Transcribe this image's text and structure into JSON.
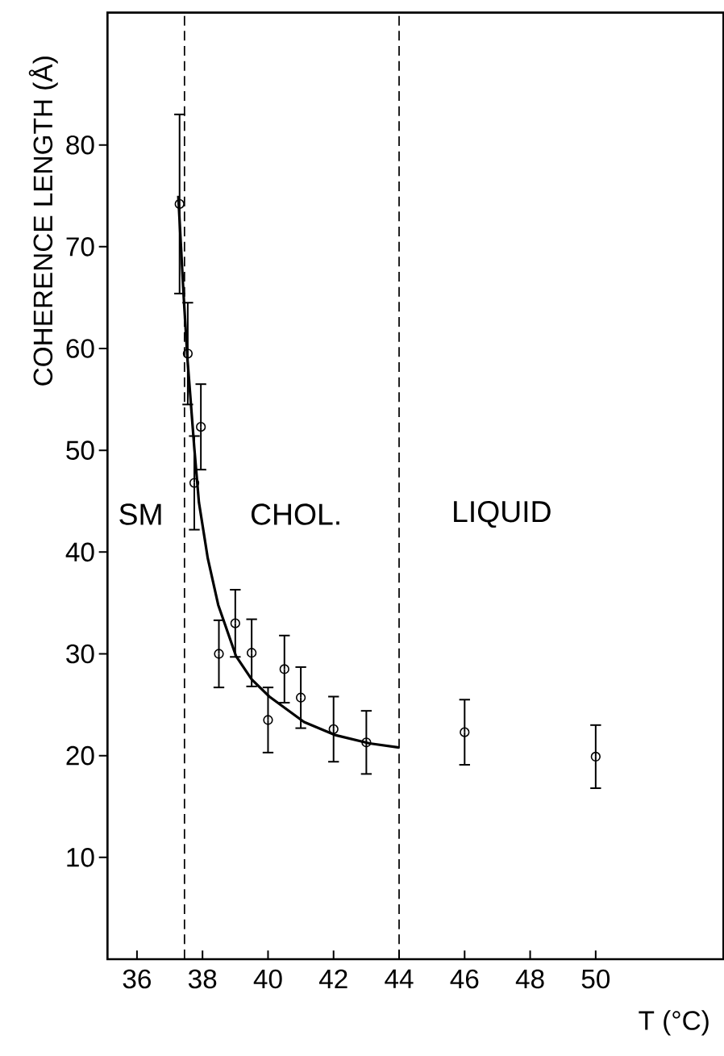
{
  "chart_data": {
    "type": "scatter",
    "xlabel": "T (°C)",
    "ylabel": "COHERENCE LENGTH (Å)",
    "xlim": [
      35.1,
      53.9
    ],
    "ylim": [
      0,
      93
    ],
    "xticks": [
      36,
      38,
      40,
      42,
      44,
      46,
      48,
      50
    ],
    "yticks": [
      10,
      20,
      30,
      40,
      50,
      60,
      70,
      80
    ],
    "series": [
      {
        "color": "#000000",
        "marker": "circle",
        "x": [
          37.3,
          37.55,
          37.75,
          37.95,
          38.5,
          39,
          39.5,
          40,
          40.5,
          41,
          42,
          43,
          46,
          50
        ],
        "values": [
          74.2,
          59.5,
          46.8,
          52.3,
          30,
          33,
          30.1,
          23.5,
          28.5,
          25.7,
          22.6,
          21.3,
          22.3,
          19.9
        ],
        "errors": [
          8.8,
          5,
          4.6,
          4.2,
          3.3,
          3.3,
          3.3,
          3.2,
          3.3,
          3.0,
          3.2,
          3.1,
          3.2,
          3.1
        ]
      },
      {
        "type": "line",
        "color": "#000000",
        "marker": "none",
        "line_style": "solid",
        "x": [
          37.26,
          37.42,
          37.54,
          37.75,
          37.89,
          38.16,
          38.48,
          39.02,
          39.5,
          40.04,
          41.1,
          42.07,
          43.1,
          44.0
        ],
        "values": [
          75,
          65.4,
          59,
          50.2,
          44.9,
          39.4,
          34.8,
          29.8,
          27.5,
          25.8,
          23.3,
          22.0,
          21.2,
          20.8
        ]
      }
    ],
    "ref_lines": [
      {
        "axis": "x",
        "value": 37.45,
        "color": "#000000",
        "line_style": "dashed"
      },
      {
        "axis": "x",
        "value": 44,
        "color": "#000000",
        "line_style": "dashed"
      }
    ],
    "annotations": [
      "SM",
      "CHOL.",
      "LIQUID"
    ]
  }
}
